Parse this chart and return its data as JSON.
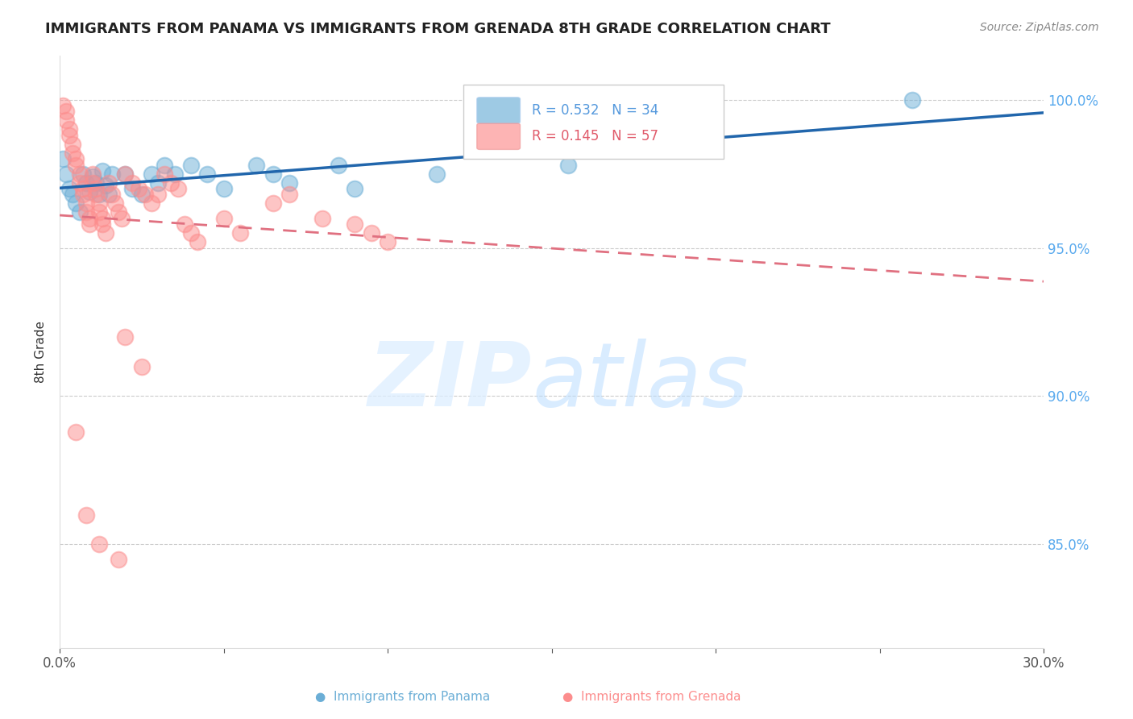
{
  "title": "IMMIGRANTS FROM PANAMA VS IMMIGRANTS FROM GRENADA 8TH GRADE CORRELATION CHART",
  "source": "Source: ZipAtlas.com",
  "ylabel": "8th Grade",
  "y_tick_labels": [
    "100.0%",
    "95.0%",
    "90.0%",
    "85.0%"
  ],
  "y_tick_values": [
    1.0,
    0.95,
    0.9,
    0.85
  ],
  "x_range": [
    0.0,
    0.3
  ],
  "y_range": [
    0.815,
    1.015
  ],
  "panama_R": 0.532,
  "panama_N": 34,
  "grenada_R": 0.145,
  "grenada_N": 57,
  "panama_color": "#6baed6",
  "grenada_color": "#fc8d8d",
  "panama_line_color": "#2166ac",
  "grenada_line_color": "#e07080",
  "panama_x": [
    0.001,
    0.002,
    0.003,
    0.004,
    0.005,
    0.006,
    0.007,
    0.008,
    0.009,
    0.01,
    0.011,
    0.012,
    0.013,
    0.014,
    0.015,
    0.016,
    0.02,
    0.022,
    0.025,
    0.028,
    0.03,
    0.032,
    0.035,
    0.04,
    0.045,
    0.05,
    0.06,
    0.065,
    0.07,
    0.085,
    0.09,
    0.115,
    0.155,
    0.26
  ],
  "panama_y": [
    0.98,
    0.975,
    0.97,
    0.968,
    0.965,
    0.962,
    0.975,
    0.972,
    0.969,
    0.974,
    0.972,
    0.968,
    0.976,
    0.971,
    0.968,
    0.975,
    0.975,
    0.97,
    0.968,
    0.975,
    0.972,
    0.978,
    0.975,
    0.978,
    0.975,
    0.97,
    0.978,
    0.975,
    0.972,
    0.978,
    0.97,
    0.975,
    0.978,
    1.0
  ],
  "grenada_x": [
    0.001,
    0.002,
    0.002,
    0.003,
    0.003,
    0.004,
    0.004,
    0.005,
    0.005,
    0.006,
    0.006,
    0.007,
    0.007,
    0.008,
    0.008,
    0.009,
    0.009,
    0.01,
    0.01,
    0.011,
    0.011,
    0.012,
    0.012,
    0.013,
    0.013,
    0.014,
    0.015,
    0.016,
    0.017,
    0.018,
    0.019,
    0.02,
    0.022,
    0.024,
    0.026,
    0.028,
    0.03,
    0.032,
    0.034,
    0.036,
    0.038,
    0.04,
    0.042,
    0.05,
    0.055,
    0.065,
    0.07,
    0.08,
    0.09,
    0.095,
    0.1,
    0.02,
    0.025,
    0.005,
    0.008,
    0.012,
    0.018
  ],
  "grenada_y": [
    0.998,
    0.996,
    0.993,
    0.99,
    0.988,
    0.985,
    0.982,
    0.98,
    0.978,
    0.975,
    0.972,
    0.97,
    0.968,
    0.965,
    0.962,
    0.96,
    0.958,
    0.975,
    0.972,
    0.97,
    0.968,
    0.965,
    0.962,
    0.96,
    0.958,
    0.955,
    0.972,
    0.968,
    0.965,
    0.962,
    0.96,
    0.975,
    0.972,
    0.97,
    0.968,
    0.965,
    0.968,
    0.975,
    0.972,
    0.97,
    0.958,
    0.955,
    0.952,
    0.96,
    0.955,
    0.965,
    0.968,
    0.96,
    0.958,
    0.955,
    0.952,
    0.92,
    0.91,
    0.888,
    0.86,
    0.85,
    0.845
  ]
}
